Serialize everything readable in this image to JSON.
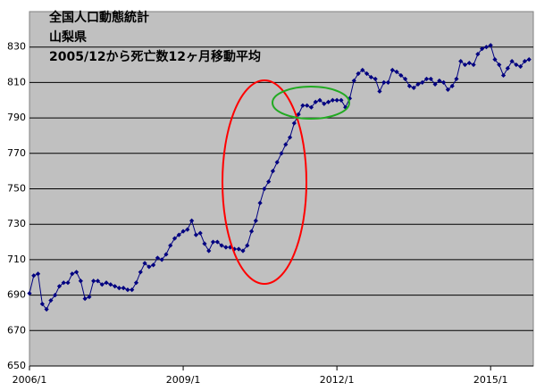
{
  "chart_data": {
    "type": "line",
    "title": [
      "全国人口動態統計",
      "山梨県",
      "2005/12から死亡数12ヶ月移動平均"
    ],
    "categories": [
      "2006/1",
      null,
      null,
      null,
      null,
      null,
      null,
      null,
      null,
      null,
      null,
      null,
      null,
      null,
      null,
      null,
      null,
      null,
      null,
      null,
      null,
      null,
      null,
      null,
      null,
      null,
      null,
      null,
      null,
      null,
      null,
      null,
      null,
      null,
      null,
      null,
      "2009/1",
      null,
      null,
      null,
      null,
      null,
      null,
      null,
      null,
      null,
      null,
      null,
      null,
      null,
      null,
      null,
      null,
      null,
      null,
      null,
      null,
      null,
      null,
      null,
      null,
      null,
      null,
      null,
      null,
      null,
      null,
      null,
      null,
      null,
      null,
      null,
      "2012/1",
      null,
      null,
      null,
      null,
      null,
      null,
      null,
      null,
      null,
      null,
      null,
      null,
      null,
      null,
      null,
      null,
      null,
      null,
      null,
      null,
      null,
      null,
      null,
      null,
      null,
      null,
      null,
      null,
      null,
      null,
      null,
      null,
      null,
      null,
      null,
      "2015/1",
      null,
      null,
      null,
      null,
      null,
      null,
      null,
      null,
      null
    ],
    "series": [
      {
        "color": "#000080",
        "values": [
          691,
          701,
          702,
          685,
          682,
          687,
          690,
          695,
          697,
          697,
          702,
          703,
          698,
          688,
          689,
          698,
          698,
          696,
          697,
          696,
          695,
          694,
          694,
          693,
          693,
          697,
          703,
          708,
          706,
          707,
          711,
          710,
          713,
          718,
          722,
          724,
          726,
          727,
          732,
          724,
          725,
          719,
          715,
          720,
          720,
          718,
          717,
          717,
          716,
          716,
          715,
          718,
          726,
          732,
          742,
          750,
          754,
          760,
          765,
          770,
          775,
          779,
          787,
          792,
          797,
          797,
          796,
          799,
          800,
          798,
          799,
          800,
          800,
          800,
          796,
          801,
          811,
          815,
          817,
          815,
          813,
          812,
          805,
          810,
          810,
          817,
          816,
          814,
          812,
          808,
          807,
          809,
          810,
          812,
          812,
          809,
          811,
          810,
          806,
          808,
          812,
          822,
          820,
          821,
          820,
          826,
          829,
          830,
          831,
          823,
          820,
          814,
          818,
          822,
          820,
          819,
          822,
          823
        ]
      }
    ],
    "ylim": [
      650,
      850
    ],
    "yticks": [
      650,
      670,
      690,
      710,
      730,
      750,
      770,
      790,
      810,
      830
    ],
    "grid": true
  }
}
